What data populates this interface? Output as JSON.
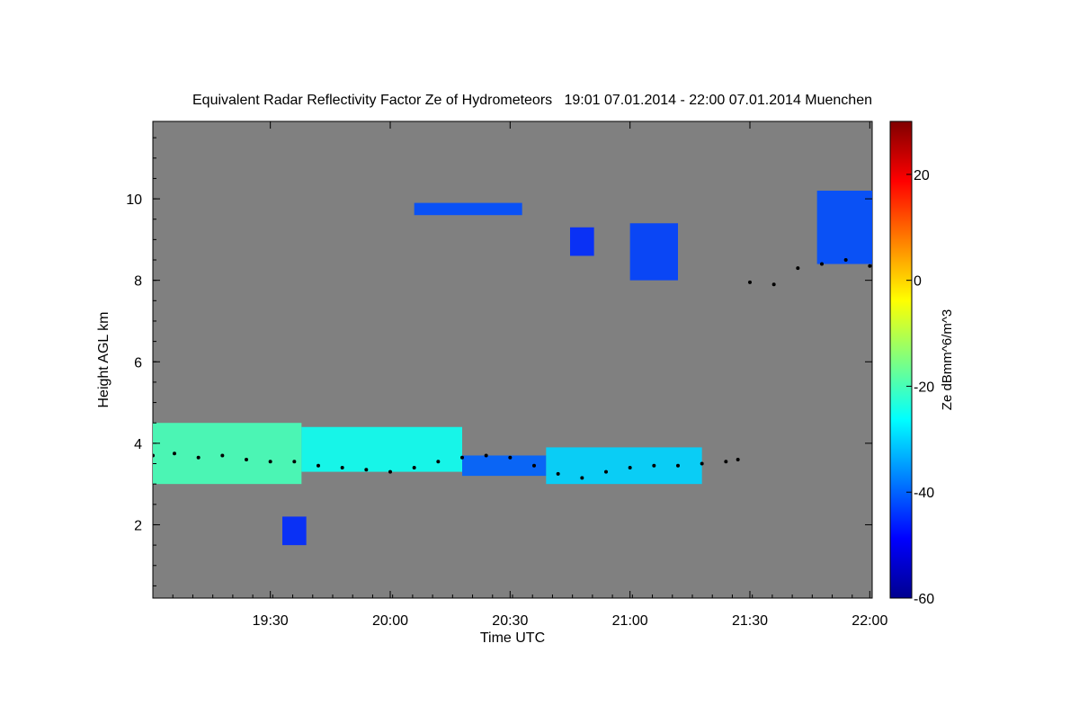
{
  "chart_data": {
    "type": "heatmap",
    "title": "Equivalent Radar Reflectivity Factor Ze of Hydrometeors   19:01 07.01.2014 - 22:00 07.01.2014 Muenchen",
    "xlabel": "Time UTC",
    "ylabel": "Height AGL km",
    "xlim_minutes": [
      19.01,
      22.01
    ],
    "x_ticks": [
      {
        "label": "19:30",
        "value": 19.5
      },
      {
        "label": "20:00",
        "value": 20.0
      },
      {
        "label": "20:30",
        "value": 20.5
      },
      {
        "label": "21:00",
        "value": 21.0
      },
      {
        "label": "21:30",
        "value": 21.5
      },
      {
        "label": "22:00",
        "value": 22.0
      }
    ],
    "ylim": [
      0.2,
      11.9
    ],
    "y_ticks": [
      2,
      4,
      6,
      8,
      10
    ],
    "background_color": "#808080",
    "colorbar": {
      "label": "Ze dBmm^6/m^3",
      "range": [
        -60,
        30
      ],
      "ticks": [
        -60,
        -40,
        -20,
        0,
        20
      ],
      "colormap": "jet"
    },
    "echo_regions": [
      {
        "t0": 19.01,
        "t1": 19.63,
        "base_km": 3.0,
        "top_km": 4.5,
        "ze_dbz": -20
      },
      {
        "t0": 19.63,
        "t1": 20.3,
        "base_km": 3.3,
        "top_km": 4.4,
        "ze_dbz": -25
      },
      {
        "t0": 20.3,
        "t1": 20.65,
        "base_km": 3.2,
        "top_km": 3.7,
        "ze_dbz": -40
      },
      {
        "t0": 20.65,
        "t1": 21.3,
        "base_km": 3.0,
        "top_km": 3.9,
        "ze_dbz": -30
      },
      {
        "t0": 19.55,
        "t1": 19.65,
        "base_km": 1.5,
        "top_km": 2.2,
        "ze_dbz": -45
      },
      {
        "t0": 20.1,
        "t1": 20.55,
        "base_km": 9.6,
        "top_km": 9.9,
        "ze_dbz": -42
      },
      {
        "t0": 20.75,
        "t1": 20.85,
        "base_km": 8.6,
        "top_km": 9.3,
        "ze_dbz": -45
      },
      {
        "t0": 21.0,
        "t1": 21.2,
        "base_km": 8.0,
        "top_km": 9.4,
        "ze_dbz": -43
      },
      {
        "t0": 21.78,
        "t1": 22.01,
        "base_km": 8.4,
        "top_km": 10.2,
        "ze_dbz": -42
      }
    ],
    "cloud_base_series": {
      "name": "",
      "points": [
        [
          19.01,
          3.7
        ],
        [
          19.1,
          3.75
        ],
        [
          19.2,
          3.65
        ],
        [
          19.3,
          3.7
        ],
        [
          19.4,
          3.6
        ],
        [
          19.5,
          3.55
        ],
        [
          19.6,
          3.55
        ],
        [
          19.7,
          3.45
        ],
        [
          19.8,
          3.4
        ],
        [
          19.9,
          3.35
        ],
        [
          20.0,
          3.3
        ],
        [
          20.1,
          3.4
        ],
        [
          20.2,
          3.55
        ],
        [
          20.3,
          3.65
        ],
        [
          20.4,
          3.7
        ],
        [
          20.5,
          3.65
        ],
        [
          20.6,
          3.45
        ],
        [
          20.7,
          3.25
        ],
        [
          20.8,
          3.15
        ],
        [
          20.9,
          3.3
        ],
        [
          21.0,
          3.4
        ],
        [
          21.1,
          3.45
        ],
        [
          21.2,
          3.45
        ],
        [
          21.3,
          3.5
        ],
        [
          21.4,
          3.55
        ],
        [
          21.45,
          3.6
        ],
        [
          21.5,
          7.95
        ],
        [
          21.6,
          7.9
        ],
        [
          21.7,
          8.3
        ],
        [
          21.8,
          8.4
        ],
        [
          21.9,
          8.5
        ],
        [
          22.0,
          8.35
        ]
      ]
    }
  }
}
